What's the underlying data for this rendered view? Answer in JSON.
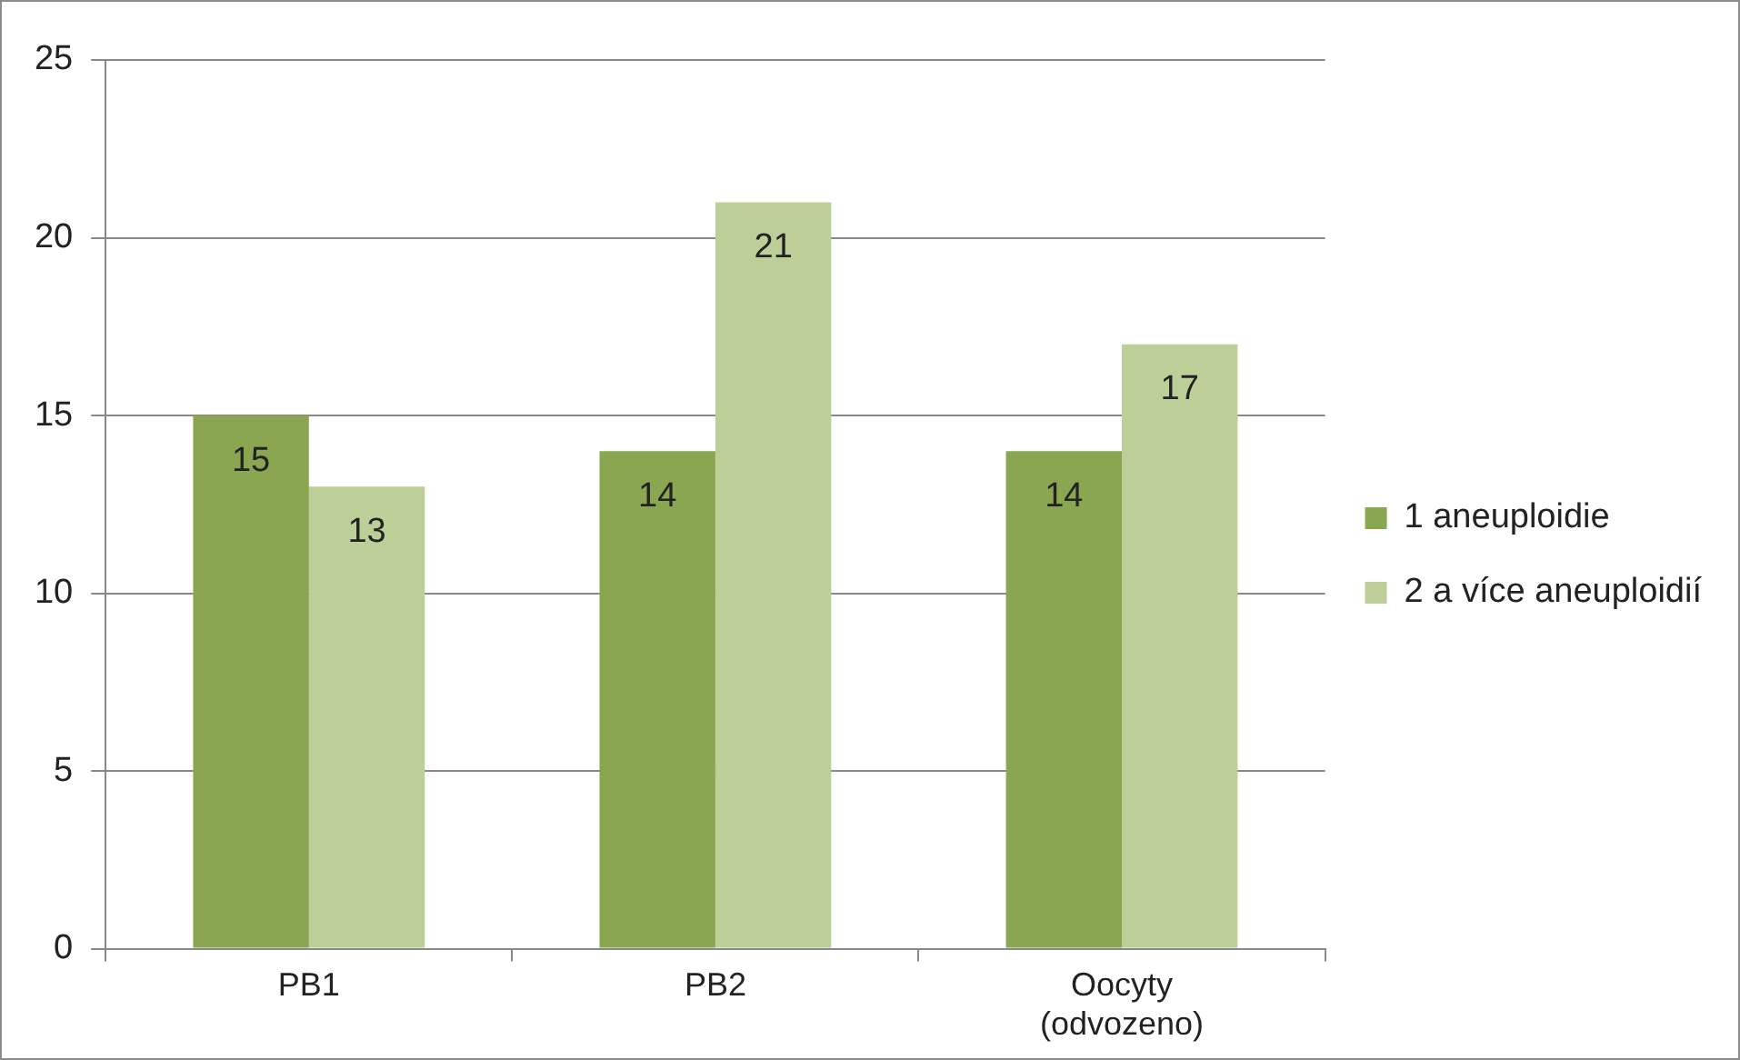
{
  "chart_data": {
    "type": "bar",
    "categories": [
      "PB1",
      "PB2",
      "Oocyty (odvozeno)"
    ],
    "series": [
      {
        "name": "1 aneuploidie",
        "color": "#8aa650",
        "values": [
          15,
          14,
          14
        ]
      },
      {
        "name": "2 a více aneuploidií",
        "color": "#bccf98",
        "values": [
          13,
          21,
          17
        ]
      }
    ],
    "ylim": [
      0,
      25
    ],
    "yticks": [
      0,
      5,
      10,
      15,
      20,
      25
    ],
    "grid": "y",
    "legend": "right",
    "data_labels": true
  }
}
